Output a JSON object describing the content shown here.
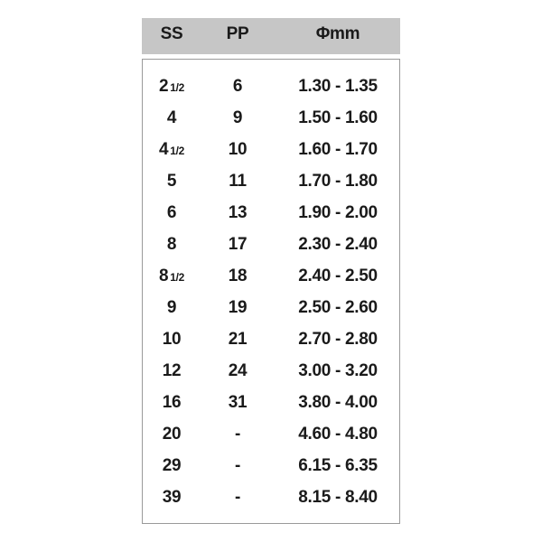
{
  "table": {
    "header": [
      "SS",
      "PP",
      "Φmm"
    ],
    "rows": [
      {
        "ss": "2",
        "ss_fraction": "1/2",
        "pp": "6",
        "mm": "1.30 - 1.35"
      },
      {
        "ss": "4",
        "pp": "9",
        "mm": "1.50 - 1.60"
      },
      {
        "ss": "4",
        "ss_fraction": "1/2",
        "pp": "10",
        "mm": "1.60 - 1.70"
      },
      {
        "ss": "5",
        "pp": "11",
        "mm": "1.70 - 1.80"
      },
      {
        "ss": "6",
        "pp": "13",
        "mm": "1.90 - 2.00"
      },
      {
        "ss": "8",
        "pp": "17",
        "mm": "2.30 - 2.40"
      },
      {
        "ss": "8",
        "ss_fraction": "1/2",
        "pp": "18",
        "mm": "2.40 - 2.50"
      },
      {
        "ss": "9",
        "pp": "19",
        "mm": "2.50 - 2.60"
      },
      {
        "ss": "10",
        "pp": "21",
        "mm": "2.70 - 2.80"
      },
      {
        "ss": "12",
        "pp": "24",
        "mm": "3.00 - 3.20"
      },
      {
        "ss": "16",
        "pp": "31",
        "mm": "3.80 - 4.00"
      },
      {
        "ss": "20",
        "pp": "-",
        "mm": "4.60 - 4.80"
      },
      {
        "ss": "29",
        "pp": "-",
        "mm": "6.15 - 6.35"
      },
      {
        "ss": "39",
        "pp": "-",
        "mm": "8.15 - 8.40"
      }
    ]
  }
}
